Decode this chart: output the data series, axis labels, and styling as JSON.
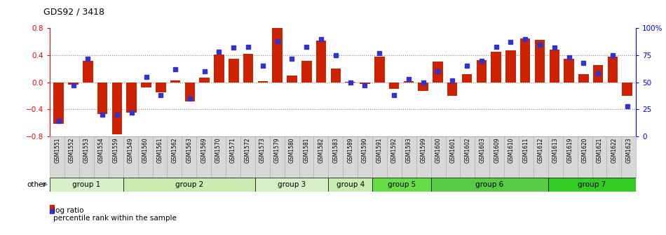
{
  "title": "GDS92 / 3418",
  "samples": [
    "GSM1551",
    "GSM1552",
    "GSM1553",
    "GSM1554",
    "GSM1559",
    "GSM1549",
    "GSM1560",
    "GSM1561",
    "GSM1562",
    "GSM1563",
    "GSM1569",
    "GSM1570",
    "GSM1571",
    "GSM1572",
    "GSM1573",
    "GSM1579",
    "GSM1580",
    "GSM1581",
    "GSM1582",
    "GSM1583",
    "GSM1589",
    "GSM1590",
    "GSM1591",
    "GSM1592",
    "GSM1593",
    "GSM1599",
    "GSM1600",
    "GSM1601",
    "GSM1602",
    "GSM1603",
    "GSM1609",
    "GSM1610",
    "GSM1611",
    "GSM1612",
    "GSM1613",
    "GSM1619",
    "GSM1620",
    "GSM1621",
    "GSM1622",
    "GSM1623"
  ],
  "log_ratio": [
    -0.62,
    -0.04,
    0.32,
    -0.47,
    -0.77,
    -0.45,
    -0.08,
    -0.15,
    0.03,
    -0.28,
    0.07,
    0.41,
    0.35,
    0.42,
    0.02,
    0.8,
    0.1,
    0.32,
    0.62,
    0.2,
    0.01,
    -0.02,
    0.38,
    -0.1,
    0.02,
    -0.13,
    0.31,
    -0.2,
    0.12,
    0.33,
    0.45,
    0.47,
    0.65,
    0.63,
    0.48,
    0.35,
    0.12,
    0.25,
    0.38,
    -0.2
  ],
  "percentile": [
    14,
    47,
    72,
    20,
    20,
    22,
    55,
    38,
    62,
    35,
    60,
    78,
    82,
    83,
    65,
    88,
    72,
    83,
    90,
    75,
    50,
    47,
    77,
    38,
    53,
    50,
    60,
    52,
    65,
    70,
    83,
    87,
    90,
    85,
    82,
    73,
    68,
    58,
    75,
    28
  ],
  "bar_color": "#cc2200",
  "dot_color": "#3333cc",
  "ylim_left": [
    -0.8,
    0.8
  ],
  "ylim_right": [
    0,
    100
  ],
  "groups": [
    {
      "name": "group 1",
      "start": 0,
      "end": 4,
      "color": "#d8f0c8"
    },
    {
      "name": "group 2",
      "start": 5,
      "end": 13,
      "color": "#c8ecb0"
    },
    {
      "name": "group 3",
      "start": 14,
      "end": 18,
      "color": "#d8f0c8"
    },
    {
      "name": "group 4",
      "start": 19,
      "end": 21,
      "color": "#c8ecb0"
    },
    {
      "name": "group 5",
      "start": 22,
      "end": 25,
      "color": "#66dd44"
    },
    {
      "name": "group 6",
      "start": 26,
      "end": 33,
      "color": "#55cc44"
    },
    {
      "name": "group 7",
      "start": 34,
      "end": 39,
      "color": "#33cc22"
    }
  ],
  "other_label": "other",
  "legend_log_ratio": "log ratio",
  "legend_percentile": "percentile rank within the sample",
  "tick_bg_color": "#d8d8d8",
  "tick_border_color": "#aaaaaa"
}
